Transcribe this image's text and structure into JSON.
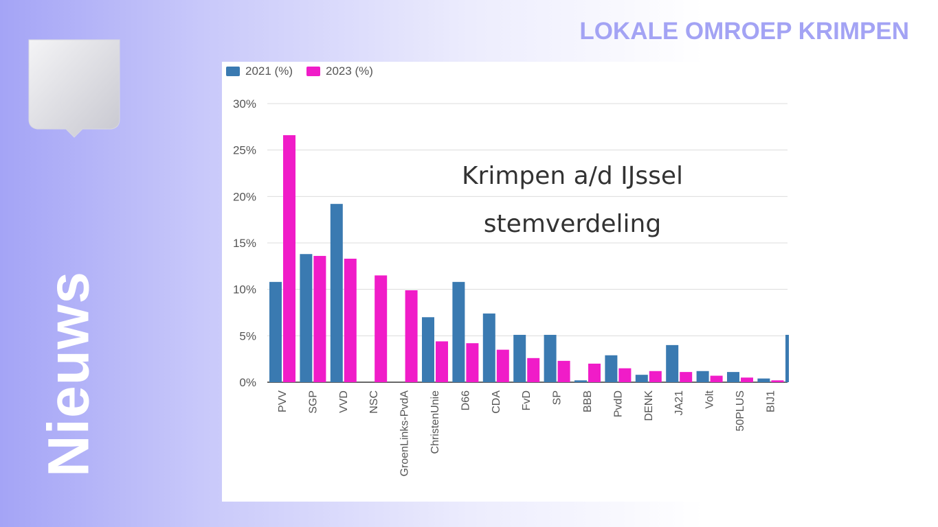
{
  "branding": {
    "station_name": "LOKALE OMROEP KRIMPEN",
    "section_label": "Nieuws",
    "logo_icon": "crescents-shield-icon"
  },
  "colors": {
    "series_2021": "#3a7ab1",
    "series_2023": "#f01cc8",
    "brand_text": "#a3a3f4"
  },
  "chart_data": {
    "type": "bar",
    "title_lines": [
      "Krimpen a/d IJssel",
      "stemverdeling"
    ],
    "xlabel": "",
    "ylabel": "",
    "ylim": [
      0,
      30
    ],
    "yticks": [
      "0%",
      "5%",
      "10%",
      "15%",
      "20%",
      "25%",
      "30%"
    ],
    "grid": true,
    "legend_position": "top-left",
    "categories": [
      "PVV",
      "SGP",
      "VVD",
      "NSC",
      "GroenLinks-PvdA",
      "ChristenUnie",
      "D66",
      "CDA",
      "FvD",
      "SP",
      "BBB",
      "PvdD",
      "DENK",
      "JA21",
      "Volt",
      "50PLUS",
      "BIJ1"
    ],
    "series": [
      {
        "name": "2021 (%)",
        "values": [
          10.8,
          13.8,
          19.2,
          0,
          0,
          7.0,
          10.8,
          7.4,
          5.1,
          5.1,
          0.2,
          2.9,
          0.8,
          4.0,
          1.2,
          1.1,
          0.4
        ]
      },
      {
        "name": "2023 (%)",
        "values": [
          26.6,
          13.6,
          13.3,
          11.5,
          9.9,
          4.4,
          4.2,
          3.5,
          2.6,
          2.3,
          2.0,
          1.5,
          1.2,
          1.1,
          0.7,
          0.5,
          0.2
        ]
      }
    ]
  }
}
